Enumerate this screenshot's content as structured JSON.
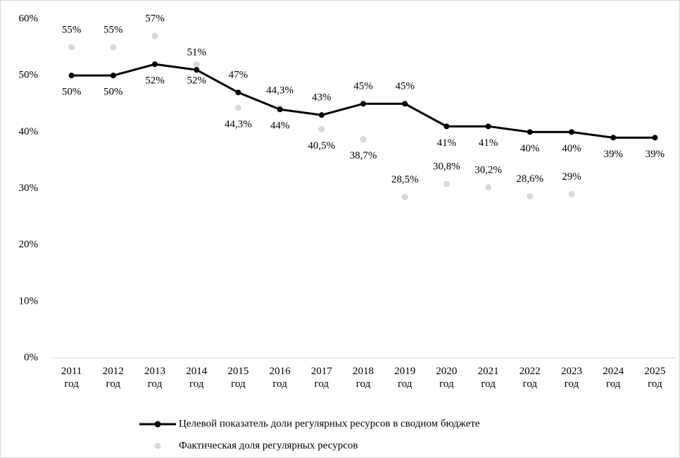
{
  "chart_data": {
    "type": "line",
    "categories": [
      "2011 год",
      "2012 год",
      "2013 год",
      "2014 год",
      "2015 год",
      "2016 год",
      "2017 год",
      "2018 год",
      "2019 год",
      "2020 год",
      "2021 год",
      "2022 год",
      "2023 год",
      "2024 год",
      "2025 год"
    ],
    "series": [
      {
        "name": "Целевой показатель доли регулярных ресурсов в сводном бюджете",
        "color": "#000000",
        "values": [
          50,
          50,
          52,
          51,
          47,
          44,
          43,
          45,
          45,
          41,
          41,
          40,
          40,
          39,
          39
        ],
        "value_labels": [
          "50%",
          "50%",
          "52%",
          "51%",
          "47%",
          "44%",
          "43%",
          "45%",
          "45%",
          "41%",
          "41%",
          "40%",
          "40%",
          "39%",
          "39%"
        ]
      },
      {
        "name": "Фактическая доля регулярных ресурсов",
        "color": "#d9d9d9",
        "values": [
          55,
          55,
          57,
          52,
          44.3,
          44.3,
          40.5,
          38.7,
          28.5,
          30.8,
          30.2,
          28.6,
          29,
          null,
          null
        ],
        "value_labels": [
          "55%",
          "55%",
          "57%",
          "52%",
          "44,3%",
          "44,3%",
          "40,5%",
          "38,7%",
          "28,5%",
          "30,8%",
          "30,2%",
          "28,6%",
          "29%",
          null,
          null
        ]
      }
    ],
    "ylim": [
      0,
      60
    ],
    "yticks": [
      {
        "value": 0,
        "label": "0%"
      },
      {
        "value": 10,
        "label": "10%"
      },
      {
        "value": 20,
        "label": "20%"
      },
      {
        "value": 30,
        "label": "30%"
      },
      {
        "value": 40,
        "label": "40%"
      },
      {
        "value": 50,
        "label": "50%"
      },
      {
        "value": 60,
        "label": "60%"
      }
    ],
    "grid": false,
    "legend": "bottom"
  }
}
